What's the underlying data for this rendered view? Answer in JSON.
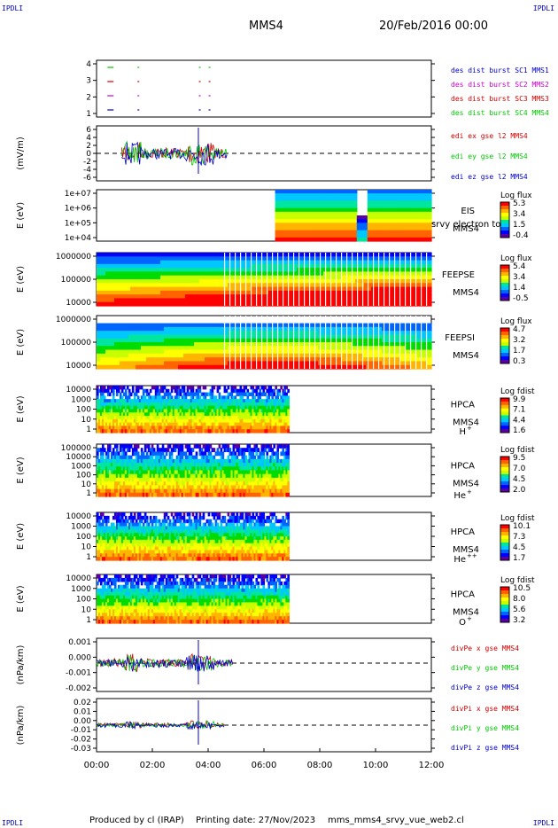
{
  "corner_labels": {
    "top_left": "IPDLI",
    "top_right": "IPDLI",
    "bottom_left": "IPDLI",
    "bottom_right": "IPDLI"
  },
  "header": {
    "spacecraft": "MMS4",
    "date": "20/Feb/2016 00:00"
  },
  "footer": {
    "produced_by": "Produced by cl (IRAP)",
    "printing_date": "Printing date: 27/Nov/2023",
    "script": "mms_mms4_srvy_vue_web2.cl"
  },
  "chart_data": [
    {
      "id": "burst",
      "type": "scatter",
      "ylabel": "",
      "yticks": [
        "4",
        "3",
        "2",
        "1"
      ],
      "legend": [
        {
          "text": "des dist burst SC1 MMS1",
          "color": "#0000c8"
        },
        {
          "text": "des dist burst SC2 MMS2",
          "color": "#c800c8"
        },
        {
          "text": "des dist burst SC3 MMS3",
          "color": "#d20000"
        },
        {
          "text": "des dist burst SC4 MMS4",
          "color": "#00c800"
        }
      ],
      "series": [
        {
          "level": 4,
          "color": "#00c800",
          "x": [
            0.5,
            1.5,
            3.7,
            4.05
          ]
        },
        {
          "level": 3,
          "color": "#d20000",
          "x": [
            0.5,
            1.5,
            3.7,
            4.05
          ]
        },
        {
          "level": 2,
          "color": "#c800c8",
          "x": [
            0.5,
            1.5,
            3.7,
            4.05
          ]
        },
        {
          "level": 1,
          "color": "#0000c8",
          "x": [
            0.5,
            1.5,
            3.7,
            4.05
          ]
        }
      ]
    },
    {
      "id": "edi",
      "type": "line",
      "ylabel": "(mV/m)",
      "yticks": [
        "6",
        "4",
        "2",
        "0",
        "-2",
        "-4",
        "-6"
      ],
      "ylim": [
        -6,
        6
      ],
      "legend": [
        {
          "text": "edi ex gse l2 MMS4",
          "color": "#d20000"
        },
        {
          "text": "edi ey gse l2 MMS4",
          "color": "#00c800"
        },
        {
          "text": "edi ez gse l2 MMS4",
          "color": "#0000c8"
        }
      ],
      "data_range_hours": [
        0.9,
        4.7
      ]
    },
    {
      "id": "eis",
      "type": "heatmap",
      "ylabel": "E (eV)",
      "yticks": [
        "1e+07",
        "1e+06",
        "1e+05",
        "1e+04"
      ],
      "label": "EIS",
      "sublabel": "MMS4",
      "overlay_text": "srvy electron to",
      "cbar_title": "Log flux",
      "cbar_ticks": [
        "5.3",
        "3.4",
        "1.5",
        "-0.4"
      ],
      "data_range_hours": [
        6.4,
        12.0
      ]
    },
    {
      "id": "feepse",
      "type": "heatmap",
      "ylabel": "E (eV)",
      "yticks": [
        "1000000",
        "100000",
        "10000"
      ],
      "label": "FEEPSE",
      "sublabel": "MMS4",
      "cbar_title": "Log flux",
      "cbar_ticks": [
        "5.4",
        "3.4",
        "1.4",
        "-0.5"
      ],
      "data_range_hours": [
        0.0,
        12.0
      ]
    },
    {
      "id": "feepsi",
      "type": "heatmap",
      "ylabel": "E (eV)",
      "yticks": [
        "1000000",
        "100000",
        "10000"
      ],
      "label": "FEEPSI",
      "sublabel": "MMS4",
      "cbar_title": "Log flux",
      "cbar_ticks": [
        "4.7",
        "3.2",
        "1.7",
        "0.3"
      ],
      "data_range_hours": [
        0.0,
        12.0
      ]
    },
    {
      "id": "hpca_h",
      "type": "heatmap",
      "ylabel": "E (eV)",
      "yticks": [
        "10000",
        "1000",
        "100",
        "10",
        "1"
      ],
      "label": "HPCA",
      "sublabel": "MMS4",
      "species": "H",
      "charge": "+",
      "cbar_title": "Log fdist",
      "cbar_ticks": [
        "9.9",
        "7.1",
        "4.4",
        "1.6"
      ],
      "data_range_hours": [
        0.0,
        6.9
      ]
    },
    {
      "id": "hpca_he1",
      "type": "heatmap",
      "ylabel": "E (eV)",
      "yticks": [
        "100000",
        "10000",
        "1000",
        "100",
        "10",
        "1"
      ],
      "label": "HPCA",
      "sublabel": "MMS4",
      "species": "He",
      "charge": "+",
      "cbar_title": "Log fdist",
      "cbar_ticks": [
        "9.5",
        "7.0",
        "4.5",
        "2.0"
      ],
      "data_range_hours": [
        0.0,
        6.9
      ]
    },
    {
      "id": "hpca_he2",
      "type": "heatmap",
      "ylabel": "E (eV)",
      "yticks": [
        "10000",
        "1000",
        "100",
        "10",
        "1"
      ],
      "label": "HPCA",
      "sublabel": "MMS4",
      "species": "He",
      "charge": "++",
      "cbar_title": "Log fdist",
      "cbar_ticks": [
        "10.1",
        "7.3",
        "4.5",
        "1.7"
      ],
      "data_range_hours": [
        0.0,
        6.9
      ]
    },
    {
      "id": "hpca_o",
      "type": "heatmap",
      "ylabel": "E (eV)",
      "yticks": [
        "10000",
        "1000",
        "100",
        "10",
        "1"
      ],
      "label": "HPCA",
      "sublabel": "MMS4",
      "species": "O",
      "charge": "+",
      "cbar_title": "Log fdist",
      "cbar_ticks": [
        "10.5",
        "8.0",
        "5.6",
        "3.2"
      ],
      "data_range_hours": [
        0.0,
        6.9
      ]
    },
    {
      "id": "divpe",
      "type": "line",
      "ylabel": "(nPa/km)",
      "yticks": [
        "0.001",
        "0.000",
        "-0.001",
        "-0.002"
      ],
      "legend": [
        {
          "text": "divPe x gse MMS4",
          "color": "#d20000"
        },
        {
          "text": "divPe y gse MMS4",
          "color": "#00c800"
        },
        {
          "text": "divPe z gse MMS4",
          "color": "#0000c8"
        }
      ],
      "data_range_hours": [
        0.0,
        4.9
      ]
    },
    {
      "id": "divpi",
      "type": "line",
      "ylabel": "(nPa/km)",
      "yticks": [
        "0.02",
        "0.01",
        "0.00",
        "-0.01",
        "-0.02",
        "-0.03"
      ],
      "legend": [
        {
          "text": "divPi x gse MMS4",
          "color": "#d20000"
        },
        {
          "text": "divPi y gse MMS4",
          "color": "#00c800"
        },
        {
          "text": "divPi z gse MMS4",
          "color": "#0000c8"
        }
      ],
      "data_range_hours": [
        0.0,
        4.6
      ]
    }
  ],
  "time_axis": {
    "ticks": [
      "00:00",
      "02:00",
      "04:00",
      "06:00",
      "08:00",
      "10:00",
      "12:00"
    ],
    "range_hours": [
      0,
      12
    ]
  }
}
